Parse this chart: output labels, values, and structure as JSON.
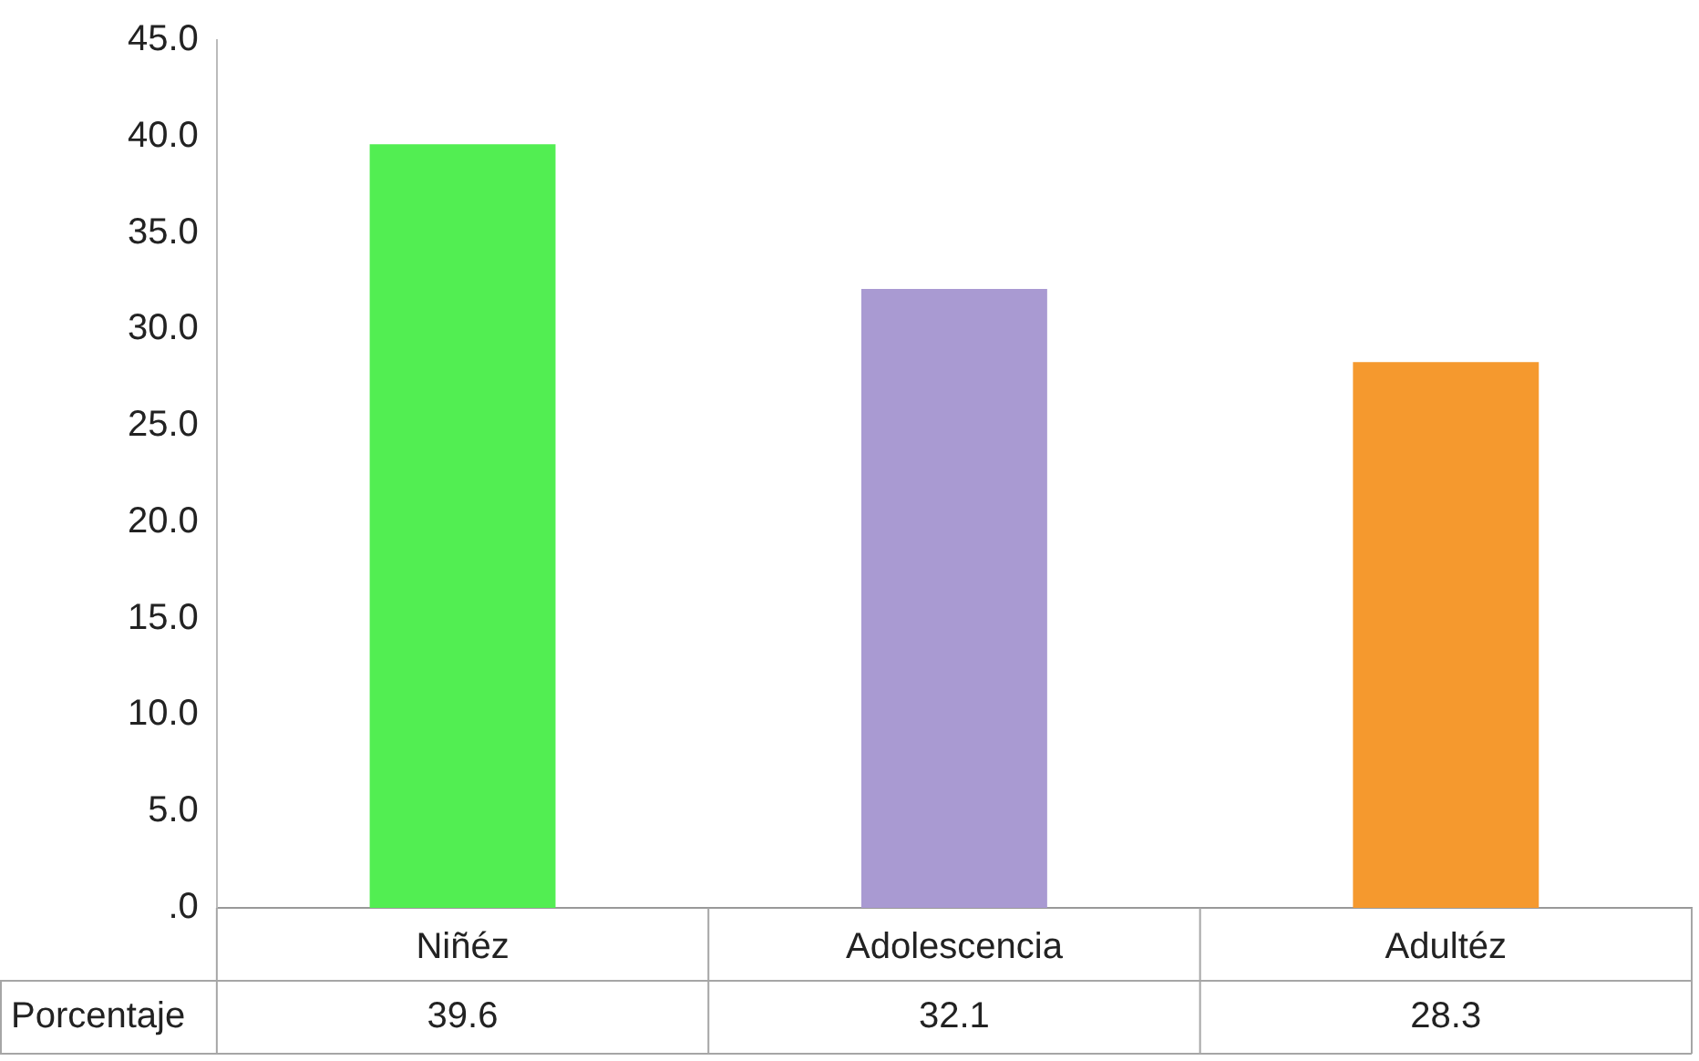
{
  "chart_data": {
    "type": "bar",
    "categories": [
      "Niñéz",
      "Adolescencia",
      "Adultéz"
    ],
    "series": [
      {
        "name": "Porcentaje",
        "colors": [
          "#52ee52",
          "#a99ad2",
          "#f5992e"
        ],
        "values": [
          39.6,
          32.1,
          28.3
        ]
      }
    ],
    "ylim": [
      0,
      45
    ],
    "yticks": [
      {
        "value": 0,
        "label": ".0"
      },
      {
        "value": 5,
        "label": "5.0"
      },
      {
        "value": 10,
        "label": "10.0"
      },
      {
        "value": 15,
        "label": "15.0"
      },
      {
        "value": 20,
        "label": "20.0"
      },
      {
        "value": 25,
        "label": "25.0"
      },
      {
        "value": 30,
        "label": "30.0"
      },
      {
        "value": 35,
        "label": "35.0"
      },
      {
        "value": 40,
        "label": "40.0"
      },
      {
        "value": 45,
        "label": "45.0"
      }
    ],
    "data_labels": true
  }
}
